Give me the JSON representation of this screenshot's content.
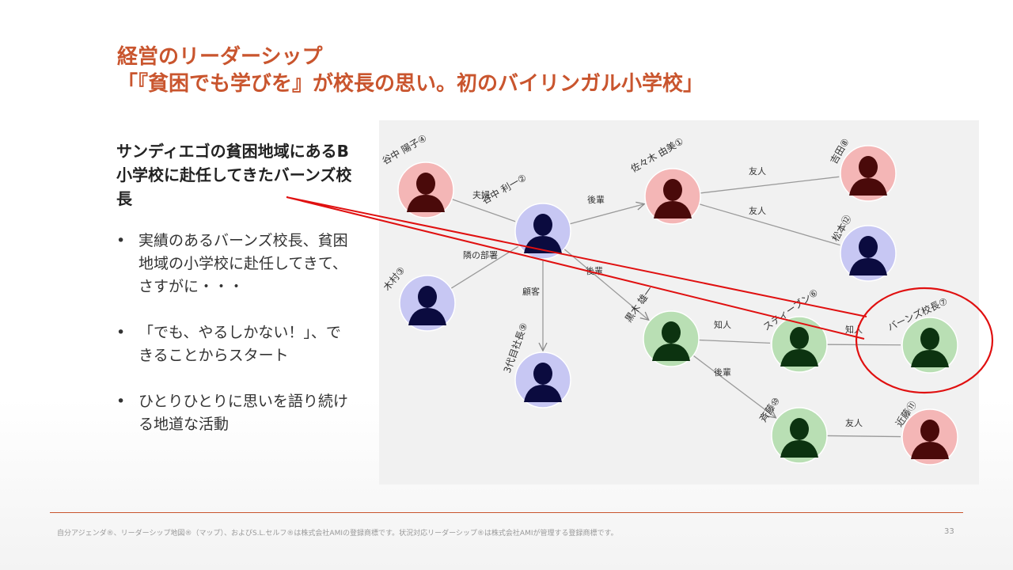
{
  "title": {
    "line1": "経営のリーダーシップ",
    "line2": "「『貧困でも学びを』が校長の思い。初のバイリンガル小学校」"
  },
  "lead": "サンディエゴの貧困地域にあるB小学校に赴任してきたバーンズ校長",
  "bullets": [
    "実績のあるバーンズ校長、貧困地域の小学校に赴任してきて、さすがに・・・",
    "「でも、やるしかない！」、できることからスタート",
    "ひとりひとりに思いを語り続ける地道な活動"
  ],
  "bullet_symbol": "•",
  "network": {
    "nodes": [
      {
        "id": "n4",
        "label": "谷中 陽子④",
        "color": "#f4b6b6",
        "figure": "#4a0a0a"
      },
      {
        "id": "n2",
        "label": "谷中 利一②",
        "color": "#c7c7f3",
        "figure": "#0b0b3f"
      },
      {
        "id": "n3",
        "label": "木村③",
        "color": "#c7c7f3",
        "figure": "#0b0b3f"
      },
      {
        "id": "n9",
        "label": "3代目社長⑨",
        "color": "#c7c7f3",
        "figure": "#0b0b3f"
      },
      {
        "id": "n1",
        "label": "佐々木 由美①",
        "color": "#f4b6b6",
        "figure": "#4a0a0a"
      },
      {
        "id": "n8",
        "label": "吉田⑧",
        "color": "#f4b6b6",
        "figure": "#4a0a0a"
      },
      {
        "id": "n12",
        "label": "松本⑫",
        "color": "#c7c7f3",
        "figure": "#0b0b3f"
      },
      {
        "id": "n5",
        "label": "黒木 雄一",
        "color": "#b9dfb4",
        "figure": "#0c3310"
      },
      {
        "id": "n6",
        "label": "スティーブン⑥",
        "color": "#b9dfb4",
        "figure": "#0c3310"
      },
      {
        "id": "n7",
        "label": "バーンズ校長⑦",
        "color": "#b9dfb4",
        "figure": "#0c3310"
      },
      {
        "id": "n10",
        "label": "斉藤⑩",
        "color": "#b9dfb4",
        "figure": "#0c3310"
      },
      {
        "id": "n11",
        "label": "近藤⑪",
        "color": "#f4b6b6",
        "figure": "#4a0a0a"
      }
    ],
    "edges": [
      {
        "from": "n4",
        "to": "n2",
        "label": "夫婦",
        "arrow": false
      },
      {
        "from": "n2",
        "to": "n1",
        "label": "後輩",
        "arrow": true
      },
      {
        "from": "n1",
        "to": "n8",
        "label": "友人",
        "arrow": false
      },
      {
        "from": "n1",
        "to": "n12",
        "label": "友人",
        "arrow": false
      },
      {
        "from": "n3",
        "to": "n2",
        "label": "隣の部署",
        "arrow": false
      },
      {
        "from": "n2",
        "to": "n9",
        "label": "顧客",
        "arrow": true
      },
      {
        "from": "n2",
        "to": "n5",
        "label": "後輩",
        "arrow": true
      },
      {
        "from": "n5",
        "to": "n6",
        "label": "知人",
        "arrow": false
      },
      {
        "from": "n6",
        "to": "n7",
        "label": "知人",
        "arrow": false
      },
      {
        "from": "n5",
        "to": "n10",
        "label": "後輩",
        "arrow": true
      },
      {
        "from": "n10",
        "to": "n11",
        "label": "友人",
        "arrow": false
      }
    ]
  },
  "annotation_color": "#e01010",
  "footer": {
    "text": "自分アジェンダ®、リーダーシップ地図®（マップ）、およびS.L.セルフ®は株式会社AMIの登録商標です。状況対応リーダーシップ®は株式会社AMIが管理する登録商標です。",
    "page": "33"
  }
}
